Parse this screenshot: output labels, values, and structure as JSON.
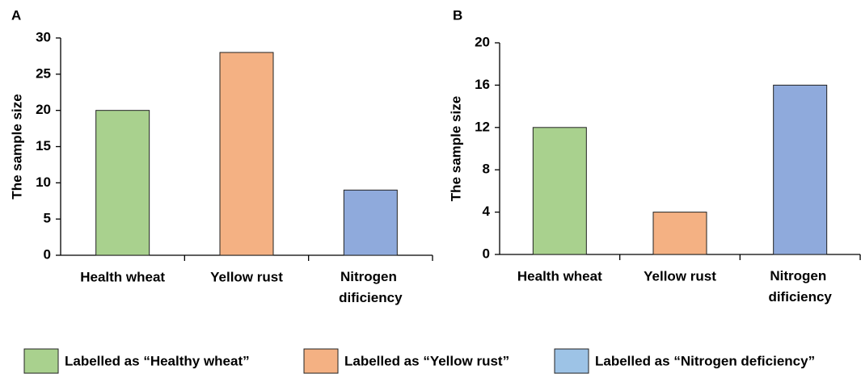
{
  "chart_data": [
    {
      "type": "bar",
      "panel": "A",
      "ylabel": "The sample size",
      "categories": [
        "Health wheat",
        "Yellow rust",
        "Nitrogen dificiency"
      ],
      "values": [
        20,
        28,
        9
      ],
      "colors": [
        "#a9d18e",
        "#f4b183",
        "#8faadc"
      ],
      "ylim": [
        0,
        30
      ],
      "yticks": [
        0,
        5,
        10,
        15,
        20,
        25,
        30
      ]
    },
    {
      "type": "bar",
      "panel": "B",
      "ylabel": "The sample size",
      "categories": [
        "Health wheat",
        "Yellow rust",
        "Nitrogen dificiency"
      ],
      "values": [
        12,
        4,
        16
      ],
      "colors": [
        "#a9d18e",
        "#f4b183",
        "#8faadc"
      ],
      "ylim": [
        0,
        20
      ],
      "yticks": [
        0,
        4,
        8,
        12,
        16,
        20
      ]
    }
  ],
  "legend": [
    {
      "name": "Labelled as “Healthy wheat”",
      "color": "#a9d18e"
    },
    {
      "name": "Labelled as “Yellow rust”",
      "color": "#f4b183"
    },
    {
      "name": "Labelled as “Nitrogen deficiency”",
      "color": "#9dc3e6"
    }
  ]
}
